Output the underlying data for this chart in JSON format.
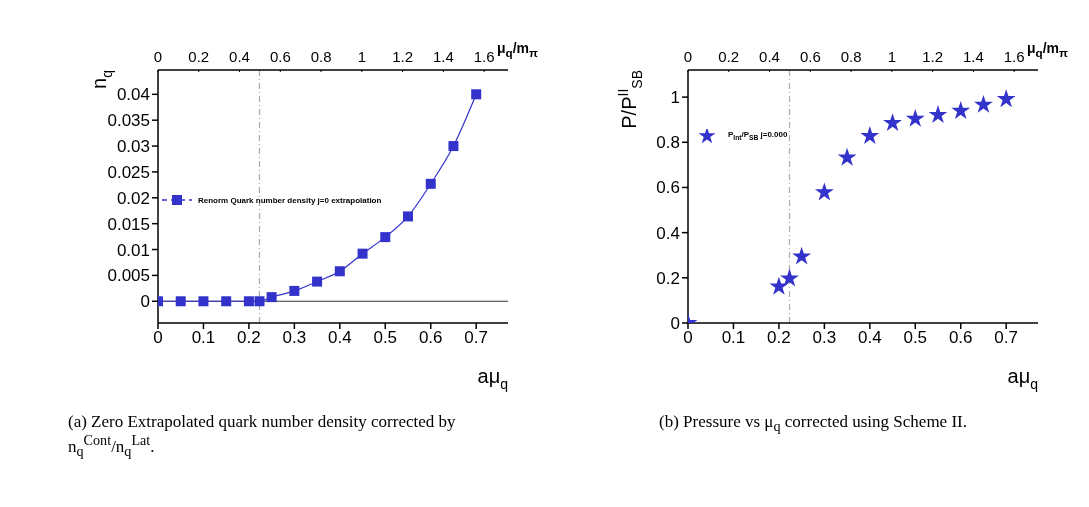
{
  "chart_data": [
    {
      "type": "line",
      "xlabel": "aμ$_{q}$",
      "ylabel": "n$_{q}$",
      "x2label": "μ$_{q}$/m$_{π}$",
      "x": [
        0,
        0.05,
        0.1,
        0.15,
        0.2,
        0.2233,
        0.25,
        0.3,
        0.35,
        0.4,
        0.45,
        0.5,
        0.55,
        0.6,
        0.65,
        0.7
      ],
      "series": [
        {
          "name": "Renorm Quark number density j=0 extrapolation",
          "color": "#3333cc",
          "values": [
            0,
            0,
            0,
            0,
            0,
            0,
            0.0008,
            0.002,
            0.0038,
            0.0058,
            0.0092,
            0.0124,
            0.0164,
            0.0227,
            0.03,
            0.04
          ]
        }
      ],
      "xlim": [
        0,
        0.77
      ],
      "xticks": [
        0,
        0.1,
        0.2,
        0.3,
        0.4,
        0.5,
        0.6,
        0.7
      ],
      "x2lim": [
        0,
        1.717
      ],
      "x2ticks": [
        0,
        0.2,
        0.4,
        0.6,
        0.8,
        1,
        1.2,
        1.4,
        1.6
      ],
      "ylim": [
        -0.0042,
        0.0447
      ],
      "yticks": [
        0,
        0.005,
        0.01,
        0.015,
        0.02,
        0.025,
        0.03,
        0.035,
        0.04
      ],
      "marker": "square",
      "legend": "left",
      "ref_lines": [
        {
          "axis": "x",
          "value": 0.2233,
          "color": "#aaaaaa",
          "line_style": "dashed"
        },
        {
          "axis": "y",
          "value": 0,
          "color": "#333333",
          "line_style": "solid"
        }
      ],
      "annotations": [
        "(a) Zero Extrapolated quark number density corrected by n$_{q}$$^{Cont}$/n$_{q}$$^{Lat}$."
      ]
    },
    {
      "type": "scatter",
      "xlabel": "aμ$_{q}$",
      "ylabel": "P/P$^{II}$$_{SB}$",
      "x2label": "μ$_{q}$/m$_{π}$",
      "x": [
        0,
        0.2,
        0.2233,
        0.25,
        0.3,
        0.35,
        0.4,
        0.45,
        0.5,
        0.55,
        0.6,
        0.65,
        0.7
      ],
      "series": [
        {
          "name": "P$_{Int}$/P$_{SB}$ j=0.000",
          "color": "#3333cc",
          "values": [
            0,
            0.161,
            0.197,
            0.294,
            0.578,
            0.732,
            0.828,
            0.885,
            0.904,
            0.921,
            0.939,
            0.966,
            0.991
          ]
        }
      ],
      "xlim": [
        0,
        0.77
      ],
      "xticks": [
        0,
        0.1,
        0.2,
        0.3,
        0.4,
        0.5,
        0.6,
        0.7
      ],
      "x2lim": [
        0,
        1.717
      ],
      "x2ticks": [
        0,
        0.2,
        0.4,
        0.6,
        0.8,
        1,
        1.2,
        1.4,
        1.6
      ],
      "ylim": [
        0,
        1.12
      ],
      "yticks": [
        0,
        0.2,
        0.4,
        0.6,
        0.8,
        1
      ],
      "marker": "star",
      "legend": "top left",
      "ref_lines": [
        {
          "axis": "x",
          "value": 0.2233,
          "color": "#aaaaaa",
          "line_style": "dashed"
        }
      ],
      "annotations": [
        "(b) Pressure vs μ$_{q}$ corrected using Scheme II."
      ]
    }
  ]
}
